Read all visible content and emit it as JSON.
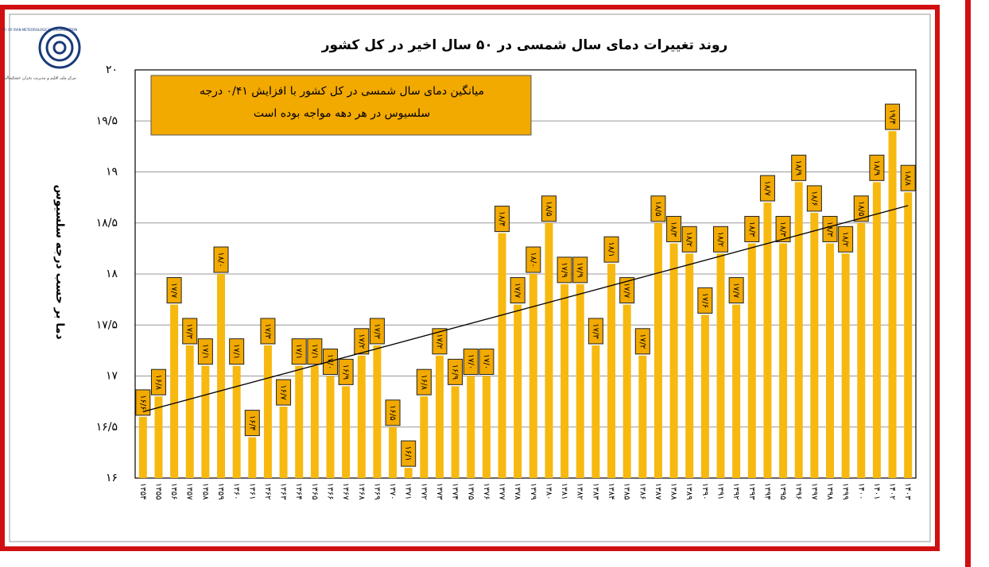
{
  "logo": {
    "org_en": "I.R. OF IRAN METEOROLOGICAL ORGANIZATION",
    "org_fa": "مرکز ملی اقلیم و مدیریت بحران خشکسالی"
  },
  "chart_data": {
    "type": "bar",
    "title": "روند تغییرات دمای سال شمسی در ۵۰ سال اخیر در کل کشور",
    "y_label": "دما بر حسب درجه سلسیوس",
    "annotation": [
      "میانگین دمای سال شمسی در کل کشور با  افزایش ۰/۴۱ درجه",
      "سلسیوس در هر دهه مواجه بوده است"
    ],
    "categories": [
      "۱۳۵۴",
      "۱۳۵۵",
      "۱۳۵۶",
      "۱۳۵۷",
      "۱۳۵۸",
      "۱۳۵۹",
      "۱۳۶۰",
      "۱۳۶۱",
      "۱۳۶۲",
      "۱۳۶۳",
      "۱۳۶۴",
      "۱۳۶۵",
      "۱۳۶۶",
      "۱۳۶۷",
      "۱۳۶۸",
      "۱۳۶۹",
      "۱۳۷۰",
      "۱۳۷۱",
      "۱۳۷۲",
      "۱۳۷۳",
      "۱۳۷۴",
      "۱۳۷۵",
      "۱۳۷۶",
      "۱۳۷۷",
      "۱۳۷۸",
      "۱۳۷۹",
      "۱۳۸۰",
      "۱۳۸۱",
      "۱۳۸۲",
      "۱۳۸۳",
      "۱۳۸۴",
      "۱۳۸۵",
      "۱۳۸۶",
      "۱۳۸۷",
      "۱۳۸۸",
      "۱۳۸۹",
      "۱۳۹۰",
      "۱۳۹۱",
      "۱۳۹۲",
      "۱۳۹۳",
      "۱۳۹۴",
      "۱۳۹۵",
      "۱۳۹۶",
      "۱۳۹۷",
      "۱۳۹۸",
      "۱۳۹۹",
      "۱۴۰۰",
      "۱۴۰۱",
      "۱۴۰۲",
      "۱۴۰۳"
    ],
    "values": [
      16.6,
      16.8,
      17.7,
      17.3,
      17.1,
      18.0,
      17.1,
      16.4,
      17.3,
      16.7,
      17.1,
      17.1,
      17.0,
      16.9,
      17.2,
      17.3,
      16.5,
      16.1,
      16.8,
      17.2,
      16.9,
      17.0,
      17.0,
      18.4,
      17.7,
      18.0,
      18.5,
      17.9,
      17.9,
      17.3,
      18.1,
      17.7,
      17.2,
      18.5,
      18.3,
      18.2,
      17.6,
      18.2,
      17.7,
      18.3,
      18.7,
      18.3,
      18.9,
      18.6,
      18.3,
      18.2,
      18.5,
      18.9,
      19.4,
      18.8
    ],
    "value_labels": [
      "۱۶/۶",
      "۱۶/۸",
      "۱۷/۷",
      "۱۷/۳",
      "۱۷/۱",
      "۱۸/۰",
      "۱۷/۱",
      "۱۶/۴",
      "۱۷/۳",
      "۱۶/۷",
      "۱۷/۱",
      "۱۷/۱",
      "۱۷/۰",
      "۱۶/۹",
      "۱۷/۲",
      "۱۷/۳",
      "۱۶/۵",
      "۱۶/۱",
      "۱۶/۸",
      "۱۷/۲",
      "۱۶/۹",
      "۱۷/۰",
      "۱۷/۰",
      "۱۸/۴",
      "۱۷/۷",
      "۱۸/۰",
      "۱۸/۵",
      "۱۷/۹",
      "۱۷/۹",
      "۱۷/۳",
      "۱۸/۱",
      "۱۷/۷",
      "۱۷/۲",
      "۱۸/۵",
      "۱۸/۳",
      "۱۸/۲",
      "۱۷/۶",
      "۱۸/۲",
      "۱۷/۷",
      "۱۸/۳",
      "۱۸/۷",
      "۱۸/۳",
      "۱۸/۹",
      "۱۸/۶",
      "۱۸/۳",
      "۱۸/۲",
      "۱۸/۵",
      "۱۸/۹",
      "۱۹/۴",
      "۱۸/۸"
    ],
    "color": "#f7b90f",
    "label_color": "#f2a900",
    "trend": [
      16.65,
      18.67
    ],
    "trend_color": "#000000",
    "ylim": [
      16,
      20
    ],
    "yticks": [
      {
        "value": 16,
        "label": "۱۶"
      },
      {
        "value": 16.5,
        "label": "۱۶/۵"
      },
      {
        "value": 17,
        "label": "۱۷"
      },
      {
        "value": 17.5,
        "label": "۱۷/۵"
      },
      {
        "value": 18,
        "label": "۱۸"
      },
      {
        "value": 18.5,
        "label": "۱۸/۵"
      },
      {
        "value": 19,
        "label": "۱۹"
      },
      {
        "value": 19.5,
        "label": "۱۹/۵"
      },
      {
        "value": 20,
        "label": "۲۰"
      }
    ],
    "grid": true
  }
}
